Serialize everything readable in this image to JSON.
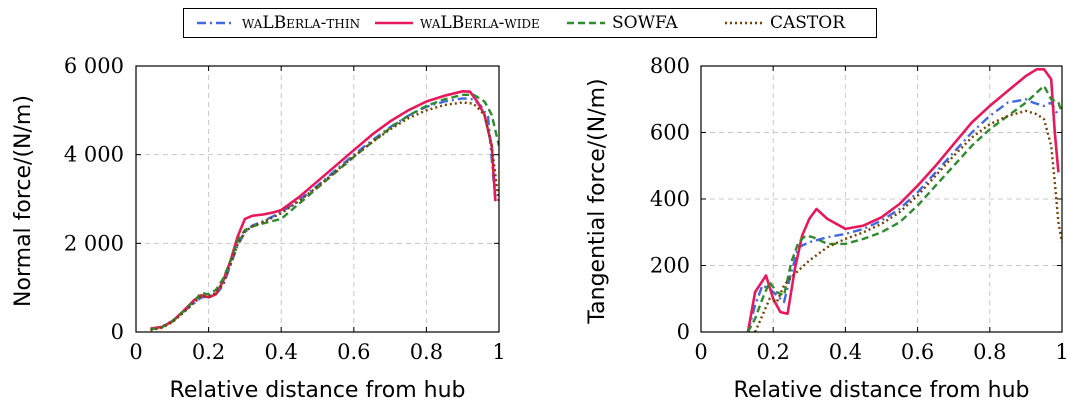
{
  "legend": {
    "items": [
      {
        "name": "waLBerla-thin",
        "color": "#4169E1",
        "dash": "dashdot"
      },
      {
        "name": "waLBerla-wide",
        "color": "#E8185C",
        "dash": "solid"
      },
      {
        "name": "SOWFA",
        "color": "#2E8B2E",
        "dash": "dashed"
      },
      {
        "name": "CASTOR",
        "color": "#7B3F00",
        "dash": "dotted"
      }
    ]
  },
  "chart_data": [
    {
      "type": "line",
      "xlabel": "Relative distance from hub",
      "ylabel": "Normal force/(N/m)",
      "xlim": [
        0,
        1
      ],
      "ylim": [
        0,
        6000
      ],
      "xticks": [
        "0",
        "0.2",
        "0.4",
        "0.6",
        "0.8",
        "1"
      ],
      "yticks": [
        "0",
        "2 000",
        "4 000",
        "6 000"
      ],
      "grid": true,
      "series": [
        {
          "name": "waLBerla-thin",
          "color": "#4169E1",
          "x": [
            0.04,
            0.07,
            0.1,
            0.13,
            0.16,
            0.18,
            0.2,
            0.22,
            0.24,
            0.26,
            0.28,
            0.3,
            0.32,
            0.35,
            0.4,
            0.45,
            0.5,
            0.55,
            0.6,
            0.65,
            0.7,
            0.75,
            0.8,
            0.85,
            0.9,
            0.93,
            0.95,
            0.97,
            0.99
          ],
          "y": [
            60,
            120,
            250,
            450,
            650,
            780,
            800,
            850,
            1050,
            1500,
            1950,
            2250,
            2400,
            2500,
            2700,
            2980,
            3300,
            3650,
            4000,
            4320,
            4620,
            4880,
            5080,
            5200,
            5270,
            5250,
            5100,
            4850,
            2950
          ]
        },
        {
          "name": "waLBerla-wide",
          "color": "#E8185C",
          "x": [
            0.04,
            0.07,
            0.1,
            0.13,
            0.16,
            0.18,
            0.2,
            0.22,
            0.24,
            0.26,
            0.28,
            0.3,
            0.32,
            0.35,
            0.38,
            0.4,
            0.45,
            0.5,
            0.55,
            0.6,
            0.65,
            0.7,
            0.75,
            0.8,
            0.85,
            0.9,
            0.92,
            0.94,
            0.96,
            0.98,
            0.99
          ],
          "y": [
            80,
            110,
            240,
            470,
            720,
            830,
            780,
            850,
            1150,
            1600,
            2150,
            2550,
            2620,
            2650,
            2700,
            2750,
            3050,
            3400,
            3750,
            4100,
            4450,
            4750,
            5000,
            5200,
            5330,
            5430,
            5420,
            5200,
            4900,
            4200,
            2950
          ]
        },
        {
          "name": "SOWFA",
          "color": "#2E8B2E",
          "x": [
            0.04,
            0.07,
            0.1,
            0.13,
            0.16,
            0.18,
            0.2,
            0.22,
            0.24,
            0.26,
            0.28,
            0.3,
            0.32,
            0.35,
            0.4,
            0.45,
            0.5,
            0.55,
            0.6,
            0.65,
            0.7,
            0.75,
            0.8,
            0.85,
            0.9,
            0.93,
            0.96,
            0.98,
            1.0
          ],
          "y": [
            60,
            100,
            230,
            460,
            700,
            880,
            850,
            950,
            1200,
            1600,
            2050,
            2300,
            2380,
            2450,
            2550,
            2900,
            3250,
            3600,
            3950,
            4280,
            4600,
            4880,
            5100,
            5250,
            5350,
            5350,
            5200,
            4900,
            4200
          ]
        },
        {
          "name": "CASTOR",
          "color": "#7B3F00",
          "x": [
            0.04,
            0.07,
            0.1,
            0.13,
            0.16,
            0.18,
            0.2,
            0.22,
            0.24,
            0.26,
            0.28,
            0.3,
            0.32,
            0.35,
            0.4,
            0.45,
            0.5,
            0.55,
            0.6,
            0.65,
            0.7,
            0.75,
            0.8,
            0.85,
            0.9,
            0.93,
            0.96,
            0.98,
            1.0
          ],
          "y": [
            40,
            90,
            220,
            430,
            660,
            810,
            800,
            880,
            1080,
            1520,
            1980,
            2260,
            2380,
            2480,
            2680,
            2960,
            3280,
            3620,
            3960,
            4280,
            4570,
            4820,
            5000,
            5120,
            5180,
            5150,
            4900,
            4200,
            2900
          ]
        }
      ]
    },
    {
      "type": "line",
      "xlabel": "Relative distance from hub",
      "ylabel": "Tangential force/(N/m)",
      "xlim": [
        0,
        1
      ],
      "ylim": [
        0,
        800
      ],
      "xticks": [
        "0",
        "0.2",
        "0.4",
        "0.6",
        "0.8",
        "1"
      ],
      "yticks": [
        "0",
        "200",
        "400",
        "600",
        "800"
      ],
      "grid": true,
      "series": [
        {
          "name": "waLBerla-thin",
          "color": "#4169E1",
          "x": [
            0.13,
            0.15,
            0.17,
            0.19,
            0.21,
            0.23,
            0.25,
            0.27,
            0.3,
            0.35,
            0.4,
            0.45,
            0.5,
            0.55,
            0.6,
            0.65,
            0.7,
            0.75,
            0.8,
            0.85,
            0.9,
            0.92,
            0.95,
            0.97,
            0.99
          ],
          "y": [
            0,
            80,
            140,
            130,
            110,
            90,
            180,
            255,
            270,
            285,
            295,
            310,
            335,
            370,
            420,
            480,
            540,
            600,
            650,
            690,
            700,
            690,
            680,
            690,
            650
          ]
        },
        {
          "name": "waLBerla-wide",
          "color": "#E8185C",
          "x": [
            0.13,
            0.15,
            0.18,
            0.2,
            0.22,
            0.24,
            0.26,
            0.28,
            0.3,
            0.32,
            0.35,
            0.4,
            0.45,
            0.5,
            0.55,
            0.6,
            0.65,
            0.7,
            0.75,
            0.8,
            0.85,
            0.9,
            0.93,
            0.95,
            0.97,
            0.98,
            0.99
          ],
          "y": [
            0,
            120,
            170,
            100,
            60,
            55,
            190,
            290,
            340,
            370,
            340,
            310,
            320,
            345,
            385,
            440,
            500,
            565,
            630,
            680,
            725,
            770,
            790,
            790,
            760,
            600,
            480
          ]
        },
        {
          "name": "SOWFA",
          "color": "#2E8B2E",
          "x": [
            0.13,
            0.15,
            0.17,
            0.19,
            0.21,
            0.23,
            0.25,
            0.27,
            0.29,
            0.31,
            0.35,
            0.4,
            0.45,
            0.5,
            0.55,
            0.6,
            0.65,
            0.7,
            0.75,
            0.8,
            0.85,
            0.9,
            0.93,
            0.95,
            0.97,
            0.99,
            1.0
          ],
          "y": [
            0,
            40,
            100,
            150,
            120,
            110,
            210,
            270,
            290,
            285,
            265,
            265,
            280,
            300,
            330,
            380,
            440,
            500,
            560,
            610,
            650,
            690,
            720,
            740,
            700,
            690,
            660
          ]
        },
        {
          "name": "CASTOR",
          "color": "#7B3F00",
          "x": [
            0.15,
            0.17,
            0.19,
            0.21,
            0.23,
            0.25,
            0.27,
            0.3,
            0.35,
            0.4,
            0.45,
            0.5,
            0.55,
            0.6,
            0.65,
            0.7,
            0.75,
            0.8,
            0.85,
            0.9,
            0.93,
            0.95,
            0.97,
            0.98,
            0.99,
            1.0
          ],
          "y": [
            0,
            50,
            100,
            90,
            140,
            165,
            185,
            215,
            255,
            280,
            300,
            325,
            360,
            410,
            470,
            530,
            585,
            625,
            650,
            665,
            655,
            640,
            560,
            450,
            330,
            270
          ]
        }
      ]
    }
  ]
}
